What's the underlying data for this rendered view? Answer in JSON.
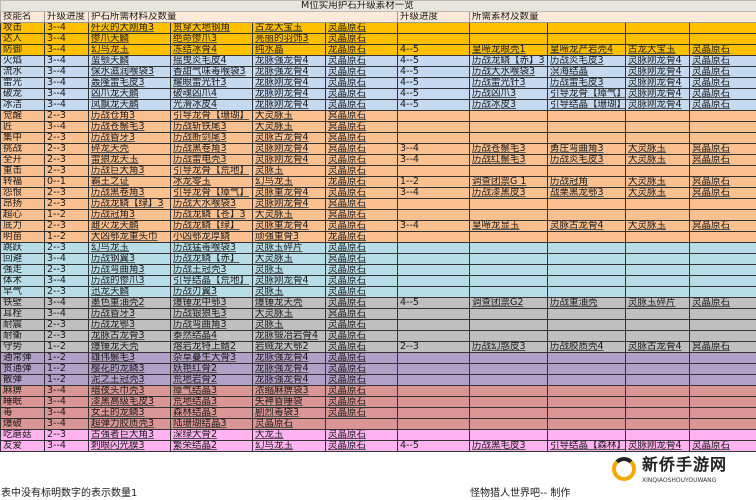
{
  "title": "M位实用护石升级素材一览",
  "headers": {
    "skill": "技能名",
    "progress": "升级进度",
    "materials": "护石所需材料及数量",
    "progress2": "升级进度",
    "materials2": "所需素材及数量"
  },
  "group_colors": {
    "A": "#FFC000",
    "B": "#C5D9F1",
    "C": "#FAC090",
    "D": "#B7DEE8",
    "E": "#BFBFBF",
    "F": "#B1A0C7",
    "G": "#DA9694",
    "H": "#FFB3F0"
  },
  "rows": [
    {
      "g": "A",
      "skill": "攻击",
      "p": "3--4",
      "m": [
        "歼灭的大刚角3",
        "贯穿大地钢角",
        "古龙大宝玉",
        "灵晶原石"
      ],
      "p2": "",
      "m2": [
        "",
        "",
        "",
        ""
      ]
    },
    {
      "g": "A",
      "skill": "达人",
      "p": "3--4",
      "m": [
        "惨爪天麟",
        "绝命惨爪3",
        "亮丽的羽饰3",
        "灵晶原石"
      ],
      "p2": "",
      "m2": [
        "",
        "",
        "",
        ""
      ]
    },
    {
      "g": "A",
      "skill": "防御",
      "p": "3--4",
      "m": [
        "幻鸟龙玉",
        "冻结冰骨4",
        "纯水晶",
        "龙晶原石"
      ],
      "p2": "4--5",
      "m2": [
        "皇啼龙眼壳1",
        "皇啼龙产岩壳4",
        "古龙大宝玉",
        "灵晶原石"
      ]
    },
    {
      "g": "B",
      "skill": "火焰",
      "p": "3--4",
      "m": [
        "蛮颚天麟",
        "摇曳炎毛皮4",
        "龙脉强龙骨4",
        "灵晶原石"
      ],
      "p2": "4--5",
      "m2": [
        "历战龙鳞【赤】3",
        "历战炎毛皮3",
        "灵脉刚龙骨4",
        "灵晶原石"
      ]
    },
    {
      "g": "B",
      "skill": "流水",
      "p": "3--4",
      "m": [
        "保水滋润喉袋3",
        "香甜气味毒喉袋3",
        "龙脉强龙骨4",
        "灵晶原石"
      ],
      "p2": "4--5",
      "m2": [
        "历战大水喉袋3",
        "溟海结晶",
        "灵脉刚龙骨4",
        "灵晶原石"
      ]
    },
    {
      "g": "B",
      "skill": "雷光",
      "p": "3--4",
      "m": [
        "轰隆雷毛皮3",
        "耀眼雷光针3",
        "龙脉刚龙骨4",
        "灵晶原石"
      ],
      "p2": "4--5",
      "m2": [
        "历战雷光针3",
        "历战雷毛皮3",
        "灵脉刚龙骨4",
        "灵晶原石"
      ]
    },
    {
      "g": "B",
      "skill": "破龙",
      "p": "3--4",
      "m": [
        "凶爪龙天麟",
        "破魂凶爪4",
        "龙脉刚龙骨4",
        "灵晶原石"
      ],
      "p2": "4--5",
      "m2": [
        "历战凶爪3",
        "引导龙骨【瘴气】",
        "灵脉刚龙骨4",
        "灵晶原石"
      ]
    },
    {
      "g": "B",
      "skill": "冰洁",
      "p": "3--4",
      "m": [
        "凤飘龙天麟",
        "光滑冰皮4",
        "龙脉刚龙骨4",
        "灵晶原石"
      ],
      "p2": "4--5",
      "m2": [
        "历战冰皮3",
        "引导结晶【珊瑚】",
        "灵脉刚龙骨4",
        "灵晶原石"
      ]
    },
    {
      "g": "C",
      "skill": "觉醒",
      "p": "2--3",
      "m": [
        "历战仓角3",
        "引导龙骨【珊瑚】",
        "大灵脉玉",
        "冥晶原石"
      ],
      "p2": "",
      "m2": [
        "",
        "",
        "",
        ""
      ]
    },
    {
      "g": "C",
      "skill": "匠",
      "p": "3--4",
      "m": [
        "历战苍鬃毛3",
        "历战斩铁尾3",
        "大灵脉玉",
        "冥晶原石"
      ],
      "p2": "",
      "m2": [
        "",
        "",
        "",
        ""
      ]
    },
    {
      "g": "C",
      "skill": "集中",
      "p": "2--3",
      "m": [
        "历战昏牙3",
        "历战断剑尾3",
        "灵脉古龙骨4",
        "冥晶原石"
      ],
      "p2": "",
      "m2": [
        "",
        "",
        "",
        ""
      ]
    },
    {
      "g": "C",
      "skill": "挑战",
      "p": "2--3",
      "m": [
        "碎龙天壳",
        "历战黑卷角3",
        "灵脉刚龙骨4",
        "冥晶原石"
      ],
      "p2": "3--4",
      "m2": [
        "历战苍鬃毛3",
        "勇庄弯曲角3",
        "大灵脉玉",
        "冥晶原石"
      ]
    },
    {
      "g": "C",
      "skill": "全开",
      "p": "2--3",
      "m": [
        "雷狼龙天玉",
        "历战雷电壳3",
        "灵脉刚龙骨4",
        "灵晶原石"
      ],
      "p2": "3--4",
      "m2": [
        "历战红鬃毛3",
        "历战炎毛皮3",
        "大灵脉玉",
        "冥晶原石"
      ]
    },
    {
      "g": "C",
      "skill": "重击",
      "p": "2--3",
      "m": [
        "历战巨大角3",
        "引导龙骨【荒地】",
        "灵脉玉",
        "灵晶原石"
      ],
      "p2": "",
      "m2": [
        "",
        "",
        "",
        ""
      ]
    },
    {
      "g": "C",
      "skill": "转福",
      "p": "0--1",
      "m": [
        "霸王之证",
        "冰龙零玉",
        "幻鸟龙玉",
        "龙晶原石"
      ],
      "p2": "1--2",
      "m2": [
        "调查团票G 1",
        "历战冠角",
        "大灵脉玉",
        "冥晶原石"
      ]
    },
    {
      "g": "C",
      "skill": "怨恨",
      "p": "2--3",
      "m": [
        "历战黑卷角3",
        "引导龙骨【瘴气】",
        "灵脉重龙骨4",
        "灵晶原石"
      ],
      "p2": "3--4",
      "m2": [
        "历战漆黑皮3",
        "战栗黑龙鄂3",
        "大灵脉玉",
        "冥晶原石"
      ]
    },
    {
      "g": "C",
      "skill": "昂扬",
      "p": "2--3",
      "m": [
        "历战龙鳞【绿】3",
        "历战大水喉袋3",
        "灵脉刚龙骨4",
        "冥晶原石"
      ],
      "p2": "",
      "m2": [
        "",
        "",
        "",
        ""
      ]
    },
    {
      "g": "C",
      "skill": "超心",
      "p": "1--2",
      "m": [
        "历战冠角3",
        "历战龙鳞【苍】3",
        "大灵脉玉",
        "冥晶原石"
      ],
      "p2": "",
      "m2": [
        "",
        "",
        "",
        ""
      ]
    },
    {
      "g": "C",
      "skill": "底力",
      "p": "2--3",
      "m": [
        "雌火龙天麟",
        "历战龙鳞【绿】",
        "灵脉重龙骨4",
        "灵晶原石"
      ],
      "p2": "3--4",
      "m2": [
        "皇啼龙显玉",
        "灵脉古龙骨4",
        "大灵脉玉",
        "冥晶原石"
      ]
    },
    {
      "g": "C",
      "skill": "明苗",
      "p": "1--2",
      "m": [
        "大凶鄂龙重头巾",
        "小凶鄂龙厚鳞",
        "顽强重骨3",
        "龙晶原石"
      ],
      "p2": "",
      "m2": [
        "",
        "",
        "",
        ""
      ]
    },
    {
      "g": "D",
      "skill": "跳跃",
      "p": "2--3",
      "m": [
        "幻鸟龙玉",
        "历战猛毒喉袋3",
        "灵脉玉碎片",
        "灵晶原石"
      ],
      "p2": "",
      "m2": [
        "",
        "",
        "",
        ""
      ]
    },
    {
      "g": "D",
      "skill": "回避",
      "p": "3--4",
      "m": [
        "历战钢翼3",
        "历战龙鳞【赤】",
        "大灵脉玉",
        "冥晶原石"
      ],
      "p2": "",
      "m2": [
        "",
        "",
        "",
        ""
      ]
    },
    {
      "g": "D",
      "skill": "强走",
      "p": "2--3",
      "m": [
        "历战弯曲角3",
        "历战王冠壳3",
        "灵脉玉",
        "灵晶原石"
      ],
      "p2": "",
      "m2": [
        "",
        "",
        "",
        ""
      ]
    },
    {
      "g": "D",
      "skill": "体术",
      "p": "3--4",
      "m": [
        "历战的惨爪3",
        "引导结晶【荒地】",
        "灵脉刚龙骨4",
        "灵晶原石"
      ],
      "p2": "",
      "m2": [
        "",
        "",
        "",
        ""
      ]
    },
    {
      "g": "D",
      "skill": "早气",
      "p": "2--3",
      "m": [
        "迅龙天麟",
        "历战刃翼3",
        "灵脉玉",
        "灵晶原石"
      ],
      "p2": "",
      "m2": [
        "",
        "",
        "",
        ""
      ]
    },
    {
      "g": "E",
      "skill": "铁壁",
      "p": "3--4",
      "m": [
        "墨色重油壳2",
        "爆锤龙中鄂3",
        "爆锤龙天壳",
        "灵晶原石"
      ],
      "p2": "4--5",
      "m2": [
        "调查团票G2",
        "历战重油壳",
        "灵脉玉碎片",
        "灵晶原石"
      ]
    },
    {
      "g": "E",
      "skill": "耳栓",
      "p": "3--4",
      "m": [
        "历战昏牙3",
        "历战银狼毛3",
        "大灵脉玉",
        "冥晶原石"
      ],
      "p2": "",
      "m2": [
        "",
        "",
        "",
        ""
      ]
    },
    {
      "g": "E",
      "skill": "耐震",
      "p": "2--3",
      "m": [
        "历战龙鄂3",
        "历战弯曲角3",
        "灵脉玉",
        "灵晶原石"
      ],
      "p2": "",
      "m2": [
        "",
        "",
        "",
        ""
      ]
    },
    {
      "g": "E",
      "skill": "耐衝",
      "p": "2--3",
      "m": [
        "龙脉古龙骨3",
        "泰然结晶4",
        "龙脉锻冶岩骨4",
        "灵晶原石"
      ],
      "p2": "",
      "m2": [
        "",
        "",
        "",
        ""
      ]
    },
    {
      "g": "E",
      "skill": "守势",
      "p": "1--2",
      "m": [
        "爆锤龙天壳",
        "熔岩龙特上鳍2",
        "岩贼龙大鄂2",
        "灵晶原石"
      ],
      "p2": "2--3",
      "m2": [
        "历战幻惑皮3",
        "历战胶质壳4",
        "灵脉古龙骨4",
        "冥晶原石"
      ]
    },
    {
      "g": "F",
      "skill": "通常弹",
      "p": "1--2",
      "m": [
        "雄伟鬃毛3",
        "杂草蔓生大骨3",
        "龙脉强龙骨4",
        "灵晶原石"
      ],
      "p2": "",
      "m2": [
        "",
        "",
        "",
        ""
      ]
    },
    {
      "g": "F",
      "skill": "贯通弹",
      "p": "1--2",
      "m": [
        "樱花的龙鳞3",
        "妖艳红骨2",
        "龙脉强龙骨4",
        "灵晶原石"
      ],
      "p2": "",
      "m2": [
        "",
        "",
        "",
        ""
      ]
    },
    {
      "g": "F",
      "skill": "散弹",
      "p": "1--2",
      "m": [
        "泥之王冠壳3",
        "荒地岩骨2",
        "龙脉强龙骨4",
        "灵晶原石"
      ],
      "p2": "",
      "m2": [
        "",
        "",
        "",
        ""
      ]
    },
    {
      "g": "G",
      "skill": "麻痹",
      "p": "3--4",
      "m": [
        "暗夜头巾壳3",
        "瘴气结晶3",
        "浓缩麻痹袋3",
        "灵晶原石"
      ],
      "p2": "",
      "m2": [
        "",
        "",
        "",
        ""
      ]
    },
    {
      "g": "G",
      "skill": "睡眠",
      "p": "3--4",
      "m": [
        "漆黑高级毛皮3",
        "荒地结晶3",
        "失神昏睡袋",
        "灵晶原石"
      ],
      "p2": "",
      "m2": [
        "",
        "",
        "",
        ""
      ]
    },
    {
      "g": "G",
      "skill": "毒",
      "p": "3--4",
      "m": [
        "女王的龙鳞3",
        "森林结晶3",
        "剧烈毒袋3",
        "灵晶原石"
      ],
      "p2": "",
      "m2": [
        "",
        "",
        "",
        ""
      ]
    },
    {
      "g": "G",
      "skill": "爆破",
      "p": "3--4",
      "m": [
        "超弹力胶质壳3",
        "陆珊瑚结晶3",
        "灵晶原石",
        ""
      ],
      "p2": "",
      "m2": [
        "",
        "",
        "",
        ""
      ]
    },
    {
      "g": "H",
      "skill": "吃蘑菇",
      "p": "2--3",
      "m": [
        "古强者巨大角3",
        "深绿大骨2",
        "大龙玉",
        "灵晶原石"
      ],
      "p2": "",
      "m2": [
        "",
        "",
        "",
        ""
      ]
    },
    {
      "g": "H",
      "skill": "友爱",
      "p": "3--4",
      "m": [
        "刺眼闪光膜3",
        "繁荣结晶2",
        "幻鸟龙玉",
        "灵晶原石"
      ],
      "p2": "4--5",
      "m2": [
        "历战黑毛皮3",
        "引导结晶【森林】",
        "灵脉刚龙骨4",
        "灵晶原石"
      ]
    }
  ],
  "footer": {
    "note": "表中没有标明数字的表示数量1",
    "credit": "怪物猎人世界吧-- 制作"
  },
  "watermark": {
    "logo_text": "新侨手游网",
    "logo_sub": "XINQIAOSHOUYOUWANG",
    "icon": "logo-ring-icon"
  }
}
